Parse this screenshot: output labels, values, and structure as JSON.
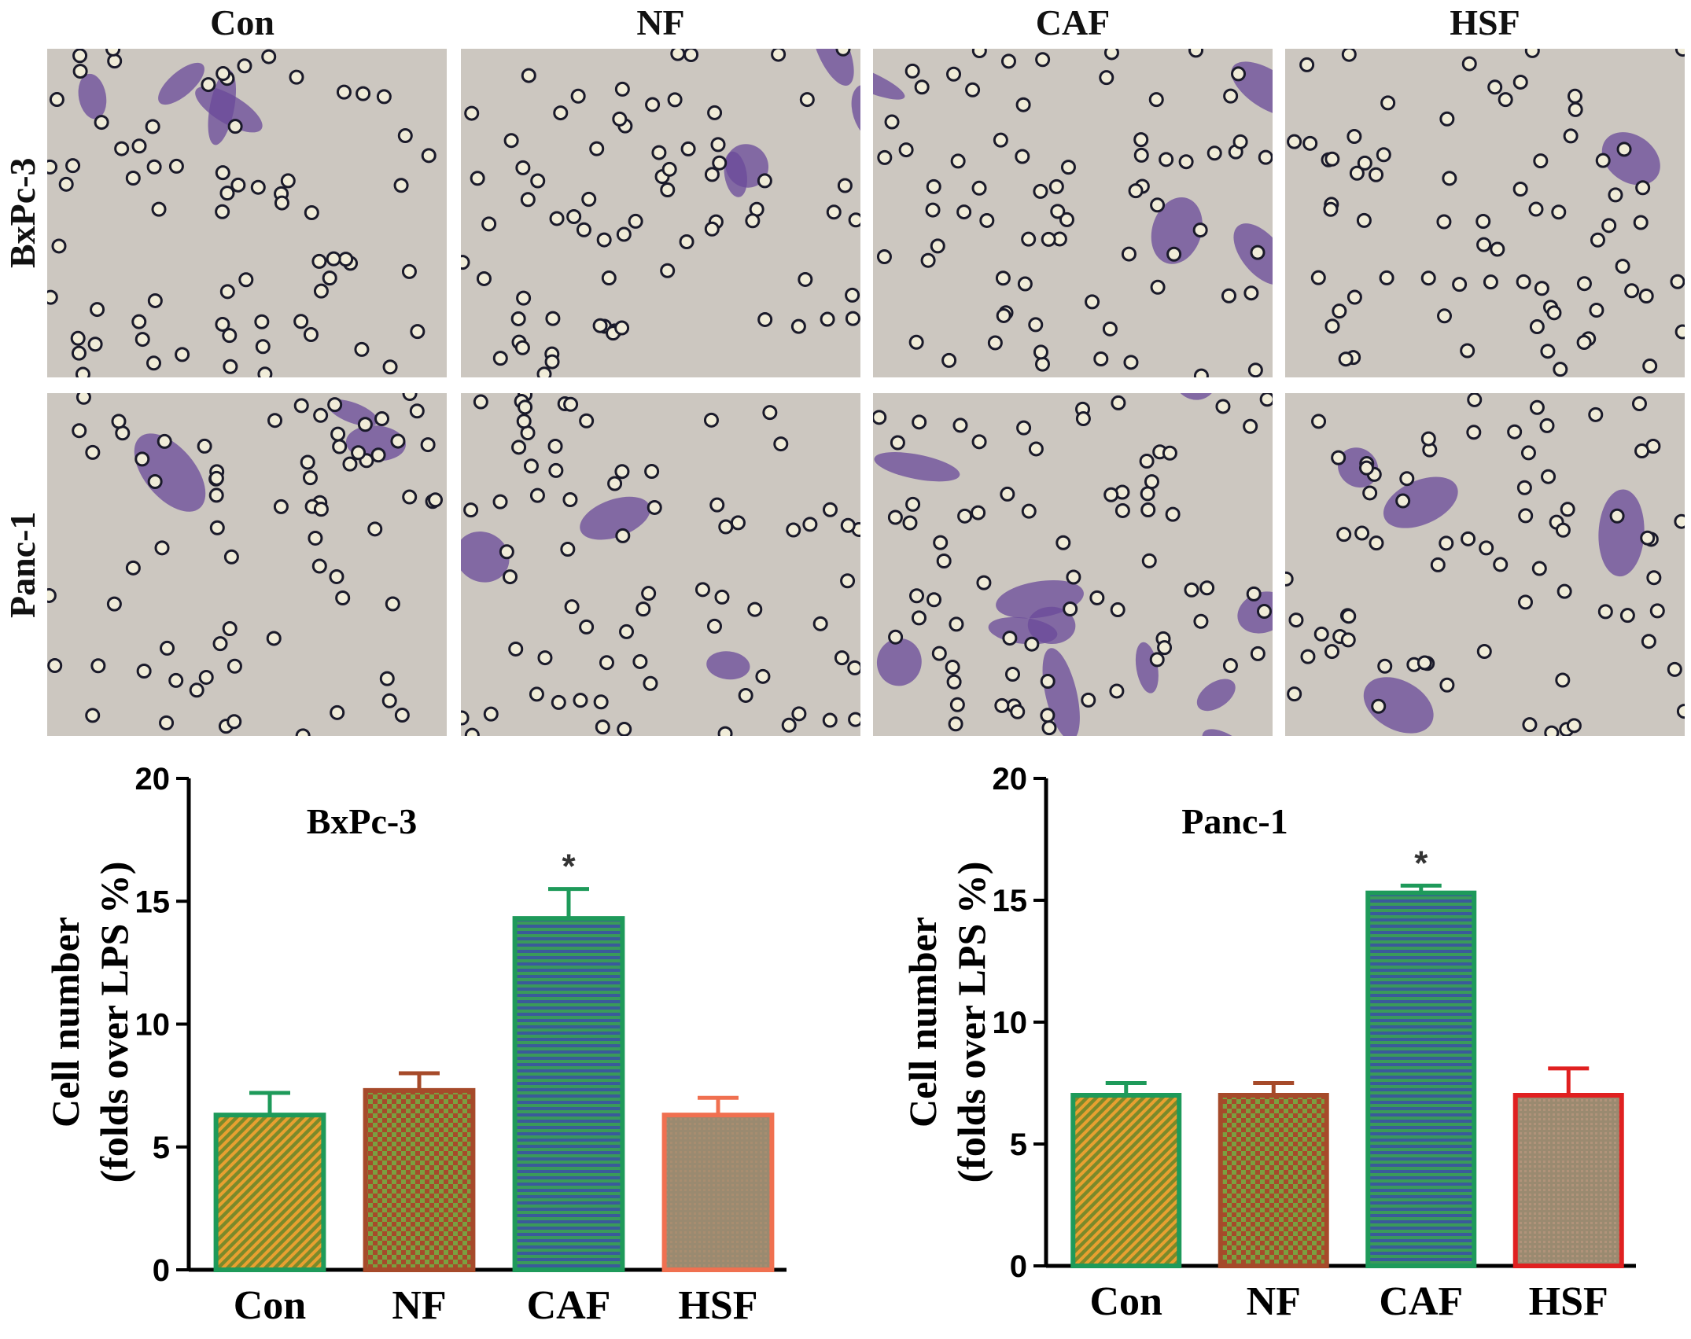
{
  "micrograph_grid": {
    "columns": [
      "Con",
      "NF",
      "CAF",
      "HSF"
    ],
    "rows": [
      "BxPc-3",
      "Panc-1"
    ]
  },
  "chart_data": [
    {
      "type": "bar",
      "title": "BxPc-3",
      "ylabel": "Cell number\n(folds over LPS %)",
      "xlabel": "",
      "categories": [
        "Con",
        "NF",
        "CAF",
        "HSF"
      ],
      "values": [
        6.3,
        7.3,
        14.3,
        6.3
      ],
      "errors": [
        0.9,
        0.7,
        1.2,
        0.7
      ],
      "annotations": [
        "",
        "",
        "*",
        ""
      ],
      "ylim": [
        0,
        20
      ],
      "yticks": [
        0,
        5,
        10,
        15,
        20
      ],
      "colors": {
        "edges": [
          "#1e9a5a",
          "#a64a2a",
          "#1e9a5a",
          "#f07050"
        ],
        "pattern_a": [
          "#e8a030",
          "#a64a2a",
          "#3a5a9a",
          "#b09070"
        ],
        "pattern_b": [
          "#7a8a2a",
          "#7aa040",
          "#3a9a5a",
          "#9a8a70"
        ]
      }
    },
    {
      "type": "bar",
      "title": "Panc-1",
      "ylabel": "Cell number\n(folds over LPS %)",
      "xlabel": "",
      "categories": [
        "Con",
        "NF",
        "CAF",
        "HSF"
      ],
      "values": [
        7.0,
        7.0,
        15.3,
        7.0
      ],
      "errors": [
        0.5,
        0.5,
        0.3,
        1.1
      ],
      "annotations": [
        "",
        "",
        "*",
        ""
      ],
      "ylim": [
        0,
        20
      ],
      "yticks": [
        0,
        5,
        10,
        15,
        20
      ],
      "colors": {
        "edges": [
          "#1e9a5a",
          "#a64a2a",
          "#1e9a5a",
          "#e02020"
        ],
        "pattern_a": [
          "#e8a030",
          "#a64a2a",
          "#3a5a9a",
          "#c09a80"
        ],
        "pattern_b": [
          "#7a8a2a",
          "#7aa040",
          "#3a9a5a",
          "#9a8a70"
        ]
      }
    }
  ]
}
